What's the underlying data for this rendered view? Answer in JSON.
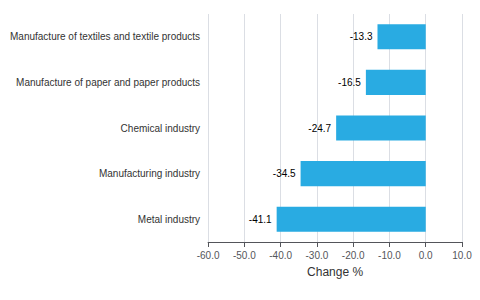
{
  "chart_data": {
    "type": "bar",
    "orientation": "horizontal",
    "categories": [
      "Metal industry",
      "Manufacturing industry",
      "Chemical industry",
      "Manufacture of paper and paper products",
      "Manufacture of textiles and textile products"
    ],
    "values": [
      -41.1,
      -34.5,
      -24.7,
      -16.5,
      -13.3
    ],
    "color": "#29abe2",
    "xlabel": "Change %",
    "xlim": [
      -60,
      10
    ],
    "xticks": [
      {
        "value": -60,
        "label": "-60.0"
      },
      {
        "value": -50,
        "label": "-50.0"
      },
      {
        "value": -40,
        "label": "-40.0"
      },
      {
        "value": -30,
        "label": "-30.0"
      },
      {
        "value": -20,
        "label": "-20.0"
      },
      {
        "value": -10,
        "label": "-10.0"
      },
      {
        "value": 0,
        "label": "0.0"
      },
      {
        "value": 10,
        "label": "10.0"
      }
    ],
    "grid": true,
    "data_labels": true
  }
}
